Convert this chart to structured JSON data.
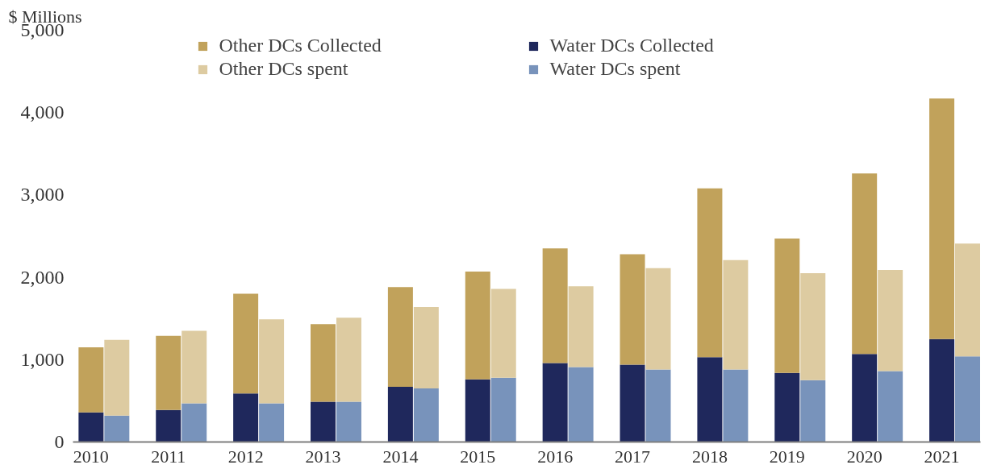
{
  "chart_data": {
    "type": "bar",
    "stacked": true,
    "ylabel": "$ Millions",
    "categories": [
      "2010",
      null,
      null,
      "2011",
      null,
      null,
      "2012",
      null,
      null,
      "2013",
      null,
      null,
      "2014",
      null,
      null,
      "2015",
      null,
      null,
      "2016",
      null,
      null,
      "2017",
      null,
      null,
      "2018",
      null,
      null,
      "2019",
      null,
      null,
      "2020",
      null,
      null,
      "2021",
      null,
      null
    ],
    "series": [
      {
        "name": "Water DCs Collected",
        "color": "#1f285c",
        "values": [
          360,
          null,
          null,
          390,
          null,
          null,
          590,
          null,
          null,
          490,
          null,
          null,
          670,
          null,
          null,
          760,
          null,
          null,
          960,
          null,
          null,
          940,
          null,
          null,
          1030,
          null,
          null,
          840,
          null,
          null,
          1070,
          null,
          null,
          1250,
          null,
          null
        ]
      },
      {
        "name": "Other DCs Collected",
        "color": "#c1a25b",
        "values": [
          790,
          null,
          null,
          900,
          null,
          null,
          1210,
          null,
          null,
          940,
          null,
          null,
          1210,
          null,
          null,
          1310,
          null,
          null,
          1390,
          null,
          null,
          1340,
          null,
          null,
          2050,
          null,
          null,
          1630,
          null,
          null,
          2190,
          null,
          null,
          2920,
          null,
          null
        ]
      },
      {
        "name": "Water DCs spent",
        "color": "#7893bb",
        "values": [
          null,
          320,
          null,
          null,
          470,
          null,
          null,
          470,
          null,
          null,
          490,
          null,
          null,
          650,
          null,
          null,
          780,
          null,
          null,
          910,
          null,
          null,
          880,
          null,
          null,
          880,
          null,
          null,
          750,
          null,
          null,
          860,
          null,
          null,
          1040,
          null
        ]
      },
      {
        "name": "Other DCs spent",
        "color": "#ddcba1",
        "values": [
          null,
          920,
          null,
          null,
          880,
          null,
          null,
          1020,
          null,
          null,
          1020,
          null,
          null,
          990,
          null,
          null,
          1080,
          null,
          null,
          980,
          null,
          null,
          1230,
          null,
          null,
          1330,
          null,
          null,
          1300,
          null,
          null,
          1230,
          null,
          null,
          1370,
          null
        ]
      }
    ],
    "ylim": [
      0,
      5000
    ],
    "yticks": [
      {
        "value": 0,
        "label": "0"
      },
      {
        "value": 1000,
        "label": "1,000"
      },
      {
        "value": 2000,
        "label": "2,000"
      },
      {
        "value": 3000,
        "label": "3,000"
      },
      {
        "value": 4000,
        "label": "4,000"
      },
      {
        "value": 5000,
        "label": "5,000"
      }
    ],
    "grid": false,
    "legend": "top"
  }
}
